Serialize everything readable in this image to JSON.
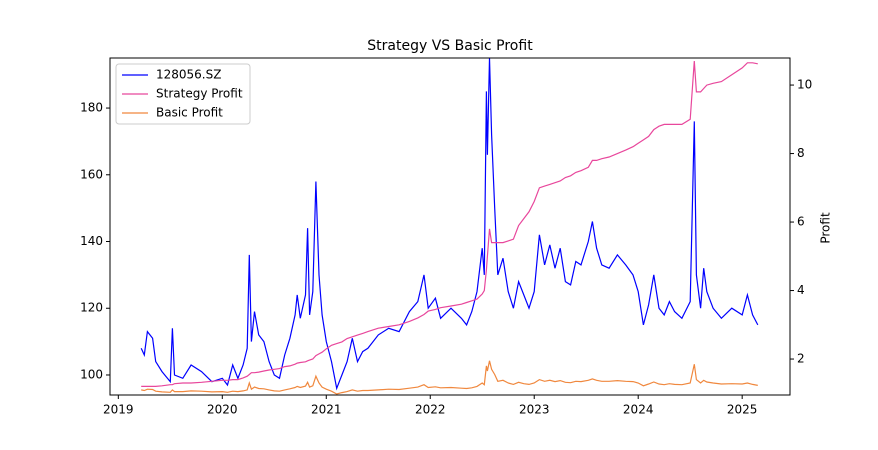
{
  "chart_data": {
    "type": "line",
    "title": "Strategy VS Basic Profit",
    "y2label": "Profit",
    "legend": "upper left",
    "x": [
      2019.22,
      2019.25,
      2019.28,
      2019.33,
      2019.36,
      2019.42,
      2019.5,
      2019.52,
      2019.54,
      2019.62,
      2019.7,
      2019.8,
      2019.9,
      2020.0,
      2020.05,
      2020.1,
      2020.15,
      2020.2,
      2020.24,
      2020.26,
      2020.28,
      2020.31,
      2020.35,
      2020.4,
      2020.45,
      2020.5,
      2020.55,
      2020.6,
      2020.65,
      2020.7,
      2020.72,
      2020.75,
      2020.8,
      2020.82,
      2020.84,
      2020.87,
      2020.9,
      2020.93,
      2020.96,
      2021.0,
      2021.05,
      2021.1,
      2021.15,
      2021.2,
      2021.25,
      2021.3,
      2021.35,
      2021.4,
      2021.5,
      2021.6,
      2021.7,
      2021.8,
      2021.88,
      2021.94,
      2021.98,
      2022.05,
      2022.1,
      2022.2,
      2022.3,
      2022.35,
      2022.4,
      2022.45,
      2022.5,
      2022.52,
      2022.54,
      2022.55,
      2022.57,
      2022.59,
      2022.62,
      2022.65,
      2022.7,
      2022.75,
      2022.8,
      2022.85,
      2022.9,
      2022.95,
      2023.0,
      2023.05,
      2023.1,
      2023.15,
      2023.2,
      2023.25,
      2023.3,
      2023.35,
      2023.4,
      2023.45,
      2023.52,
      2023.56,
      2023.6,
      2023.65,
      2023.72,
      2023.8,
      2023.88,
      2023.95,
      2024.0,
      2024.05,
      2024.1,
      2024.15,
      2024.2,
      2024.25,
      2024.3,
      2024.35,
      2024.42,
      2024.5,
      2024.54,
      2024.56,
      2024.6,
      2024.63,
      2024.66,
      2024.72,
      2024.8,
      2024.9,
      2025.0,
      2025.05,
      2025.1,
      2025.15
    ],
    "series": [
      {
        "name": "128056.SZ",
        "color": "#0000ff",
        "axis": "y",
        "values": [
          108,
          106,
          113,
          111,
          104,
          101,
          98,
          114,
          100,
          99,
          103,
          101,
          98,
          99,
          97,
          103,
          99,
          103,
          108,
          136,
          110,
          119,
          112,
          110,
          104,
          100,
          99,
          106,
          111,
          118,
          124,
          117,
          124,
          144,
          118,
          125,
          158,
          130,
          118,
          110,
          104,
          96,
          100,
          104,
          111,
          104,
          107,
          108,
          112,
          114,
          113,
          119,
          122,
          130,
          120,
          123,
          117,
          120,
          117,
          115,
          119,
          125,
          138,
          130,
          185,
          166,
          195,
          172,
          150,
          130,
          135,
          125,
          120,
          128,
          124,
          120,
          125,
          142,
          133,
          139,
          132,
          138,
          128,
          127,
          134,
          133,
          140,
          146,
          138,
          133,
          132,
          136,
          133,
          130,
          125,
          115,
          121,
          130,
          120,
          118,
          122,
          119,
          117,
          122,
          176,
          130,
          120,
          132,
          125,
          120,
          117,
          120,
          118,
          124,
          118,
          115
        ]
      },
      {
        "name": "Strategy Profit",
        "color": "#e8479c",
        "axis": "y2",
        "values": [
          1.2,
          1.2,
          1.2,
          1.2,
          1.2,
          1.22,
          1.25,
          1.25,
          1.28,
          1.3,
          1.3,
          1.32,
          1.35,
          1.38,
          1.38,
          1.4,
          1.4,
          1.45,
          1.5,
          1.55,
          1.6,
          1.6,
          1.62,
          1.65,
          1.68,
          1.7,
          1.72,
          1.78,
          1.8,
          1.85,
          1.88,
          1.9,
          1.92,
          1.95,
          1.97,
          2.0,
          2.1,
          2.15,
          2.2,
          2.3,
          2.4,
          2.45,
          2.5,
          2.6,
          2.65,
          2.7,
          2.75,
          2.8,
          2.9,
          2.95,
          3.0,
          3.1,
          3.2,
          3.3,
          3.4,
          3.45,
          3.5,
          3.55,
          3.6,
          3.65,
          3.7,
          3.75,
          3.9,
          4.0,
          4.6,
          5.0,
          5.8,
          5.4,
          5.4,
          5.4,
          5.4,
          5.45,
          5.5,
          5.9,
          6.1,
          6.3,
          6.6,
          7.0,
          7.05,
          7.1,
          7.15,
          7.2,
          7.3,
          7.35,
          7.45,
          7.5,
          7.6,
          7.8,
          7.8,
          7.85,
          7.9,
          8.0,
          8.1,
          8.2,
          8.3,
          8.4,
          8.5,
          8.7,
          8.8,
          8.85,
          8.85,
          8.85,
          8.85,
          9.0,
          10.7,
          9.8,
          9.8,
          9.9,
          10.0,
          10.05,
          10.1,
          10.3,
          10.5,
          10.65,
          10.65,
          10.62
        ]
      },
      {
        "name": "Basic Profit",
        "color": "#f0883e",
        "axis": "y2",
        "values": [
          1.1,
          1.08,
          1.12,
          1.11,
          1.06,
          1.04,
          1.03,
          1.1,
          1.05,
          1.05,
          1.07,
          1.06,
          1.04,
          1.05,
          1.03,
          1.06,
          1.05,
          1.07,
          1.1,
          1.3,
          1.12,
          1.18,
          1.14,
          1.13,
          1.1,
          1.07,
          1.06,
          1.1,
          1.13,
          1.17,
          1.2,
          1.17,
          1.21,
          1.32,
          1.18,
          1.22,
          1.5,
          1.3,
          1.18,
          1.12,
          1.06,
          0.98,
          1.02,
          1.05,
          1.1,
          1.06,
          1.08,
          1.08,
          1.1,
          1.12,
          1.11,
          1.15,
          1.18,
          1.25,
          1.17,
          1.19,
          1.16,
          1.17,
          1.15,
          1.14,
          1.16,
          1.2,
          1.3,
          1.25,
          1.8,
          1.65,
          1.95,
          1.7,
          1.55,
          1.35,
          1.38,
          1.3,
          1.26,
          1.32,
          1.28,
          1.26,
          1.3,
          1.4,
          1.35,
          1.38,
          1.34,
          1.37,
          1.32,
          1.31,
          1.35,
          1.34,
          1.38,
          1.42,
          1.38,
          1.35,
          1.35,
          1.37,
          1.35,
          1.34,
          1.3,
          1.22,
          1.27,
          1.33,
          1.27,
          1.25,
          1.28,
          1.26,
          1.25,
          1.3,
          1.85,
          1.4,
          1.3,
          1.38,
          1.33,
          1.3,
          1.27,
          1.28,
          1.27,
          1.3,
          1.26,
          1.23
        ]
      }
    ],
    "xlim": [
      2018.92,
      2025.46
    ],
    "xticks": [
      2019,
      2020,
      2021,
      2022,
      2023,
      2024,
      2025
    ],
    "ylim": [
      94,
      195
    ],
    "yticks": [
      100,
      120,
      140,
      160,
      180
    ],
    "y2lim": [
      0.95,
      10.79
    ],
    "y2ticks": [
      2,
      4,
      6,
      8,
      10
    ]
  }
}
